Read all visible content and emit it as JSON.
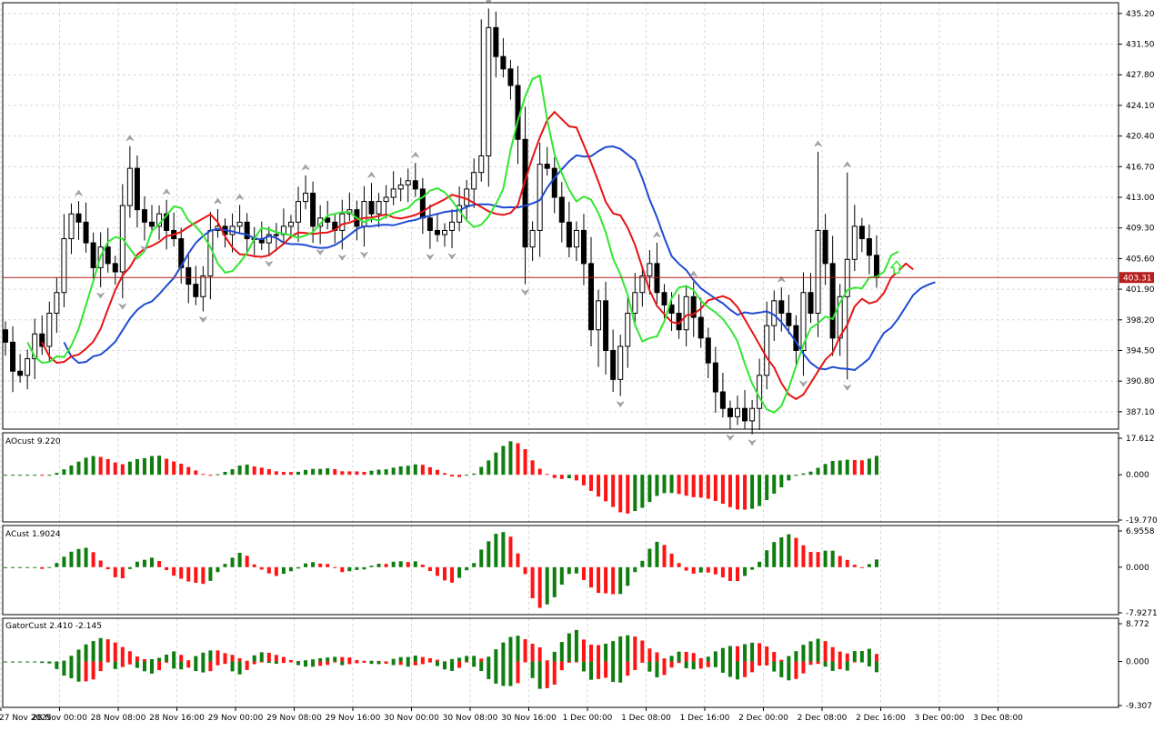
{
  "colors": {
    "bull": "#ffffff",
    "bear": "#000000",
    "up_bar": "#0f7d0f",
    "down_bar": "#ff1414",
    "ma_green": "#32e632",
    "ma_red": "#e61414",
    "ma_blue": "#1e4bd2",
    "price_line": "#b41e1e",
    "grid": "#d7d7d7",
    "frame": "#000000"
  },
  "icons": {
    "fractal_up": "fractal-up-arrow-icon",
    "fractal_down": "fractal-down-arrow-icon",
    "signal": "green-up-arrow-icon"
  },
  "main": {
    "price_label": "403.31",
    "current_price": 403.31,
    "y_ticks": [
      "435.20",
      "431.50",
      "427.80",
      "424.10",
      "420.40",
      "416.70",
      "413.00",
      "409.30",
      "405.60",
      "401.90",
      "398.20",
      "394.50",
      "390.80",
      "387.10"
    ]
  },
  "panes": {
    "ao": {
      "title": "AOcust 9.220",
      "ticks": [
        "17.612",
        "0.000",
        "-19.770"
      ]
    },
    "ac": {
      "title": "ACust 1.9024",
      "ticks": [
        "6.9558",
        "0.000",
        "-7.9271"
      ]
    },
    "gator": {
      "title": "GatorCust 2.410 -2.145",
      "ticks": [
        "8.772",
        "0.000",
        "-9.307"
      ]
    }
  },
  "x_labels": [
    "27 Nov 2025",
    "28 Nov 00:00",
    "28 Nov 08:00",
    "28 Nov 16:00",
    "29 Nov 00:00",
    "29 Nov 08:00",
    "29 Nov 16:00",
    "30 Nov 00:00",
    "30 Nov 08:00",
    "30 Nov 16:00",
    "1 Dec 00:00",
    "1 Dec 08:00",
    "1 Dec 16:00",
    "2 Dec 00:00",
    "2 Dec 08:00",
    "2 Dec 16:00",
    "3 Dec 00:00",
    "3 Dec 08:00"
  ],
  "chart_data": [
    {
      "type": "candlestick",
      "title": "",
      "ylim": [
        385.0,
        436.5
      ],
      "closes": [
        395.5,
        392.0,
        391.5,
        393.5,
        396.5,
        395.0,
        399.0,
        401.5,
        408.0,
        411.0,
        410.0,
        407.5,
        404.5,
        407.0,
        405.0,
        404.0,
        412.0,
        416.5,
        411.5,
        410.0,
        409.5,
        411.0,
        409.0,
        408.0,
        404.5,
        402.5,
        401.0,
        403.5,
        409.0,
        409.5,
        408.5,
        409.5,
        410.0,
        408.0,
        408.0,
        407.5,
        408.5,
        408.5,
        409.5,
        410.0,
        412.5,
        413.5,
        409.5,
        410.5,
        410.0,
        409.0,
        411.0,
        411.5,
        409.5,
        412.5,
        411.0,
        412.5,
        413.0,
        414.0,
        414.5,
        415.0,
        414.0,
        410.5,
        409.0,
        408.5,
        409.0,
        410.0,
        412.0,
        414.0,
        416.0,
        418.0,
        433.5,
        430.0,
        428.5,
        426.5,
        420.0,
        407.0,
        409.0,
        417.0,
        416.5,
        413.0,
        410.0,
        407.0,
        409.0,
        405.0,
        397.0,
        400.5,
        394.5,
        391.0,
        395.0,
        399.0,
        401.5,
        403.5,
        405.0,
        401.5,
        400.0,
        399.0,
        397.0,
        401.0,
        398.5,
        396.0,
        393.0,
        389.5,
        387.5,
        386.5,
        387.5,
        386.0,
        387.5,
        391.5,
        397.5,
        400.5,
        399.0,
        397.5,
        394.5,
        401.5,
        399.0,
        409.0,
        405.0,
        396.0,
        401.0,
        405.5,
        409.5,
        408.0,
        406.0,
        403.3
      ],
      "indicators": [
        "Alligator-style moving averages (green, red, blue)",
        "Fractal arrows",
        "AOcust",
        "ACust",
        "GatorCust"
      ]
    }
  ]
}
